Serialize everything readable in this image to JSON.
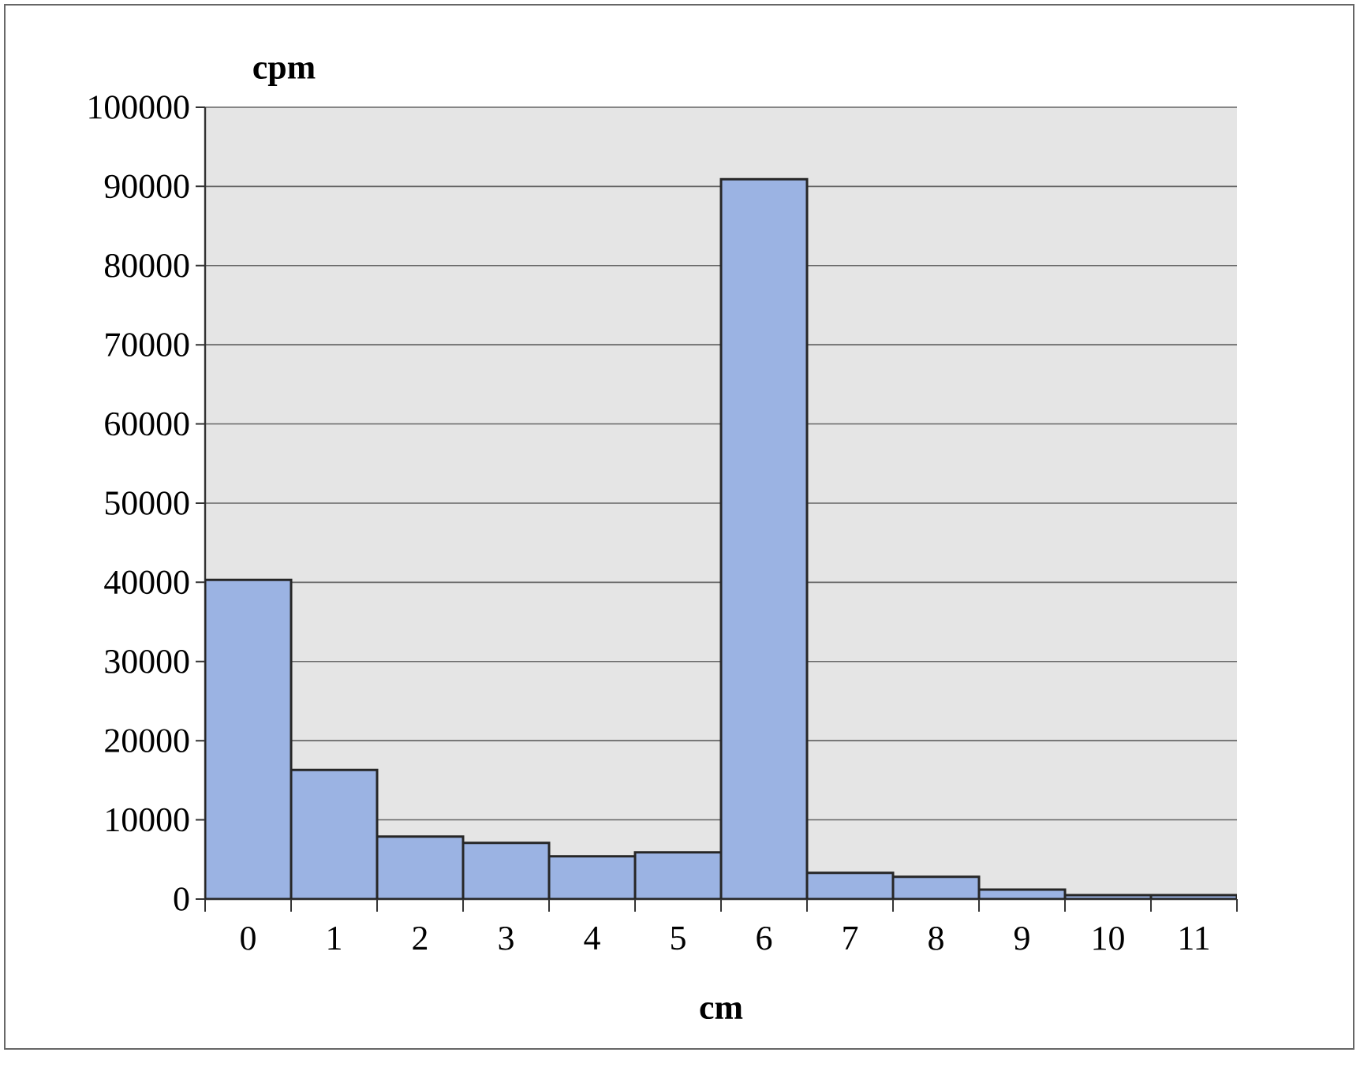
{
  "chart_data": {
    "type": "bar",
    "xlabel": "cm",
    "ylabel": "cpm",
    "categories": [
      "0",
      "1",
      "2",
      "3",
      "4",
      "5",
      "6",
      "7",
      "8",
      "9",
      "10",
      "11"
    ],
    "values": [
      40300,
      16300,
      7900,
      7100,
      5400,
      5900,
      90900,
      3300,
      2800,
      1200,
      500,
      500
    ],
    "color": "#9bb3e3",
    "ylim": [
      0,
      100000
    ],
    "yticks": [
      0,
      10000,
      20000,
      30000,
      40000,
      50000,
      60000,
      70000,
      80000,
      90000,
      100000
    ],
    "grid": "y"
  }
}
